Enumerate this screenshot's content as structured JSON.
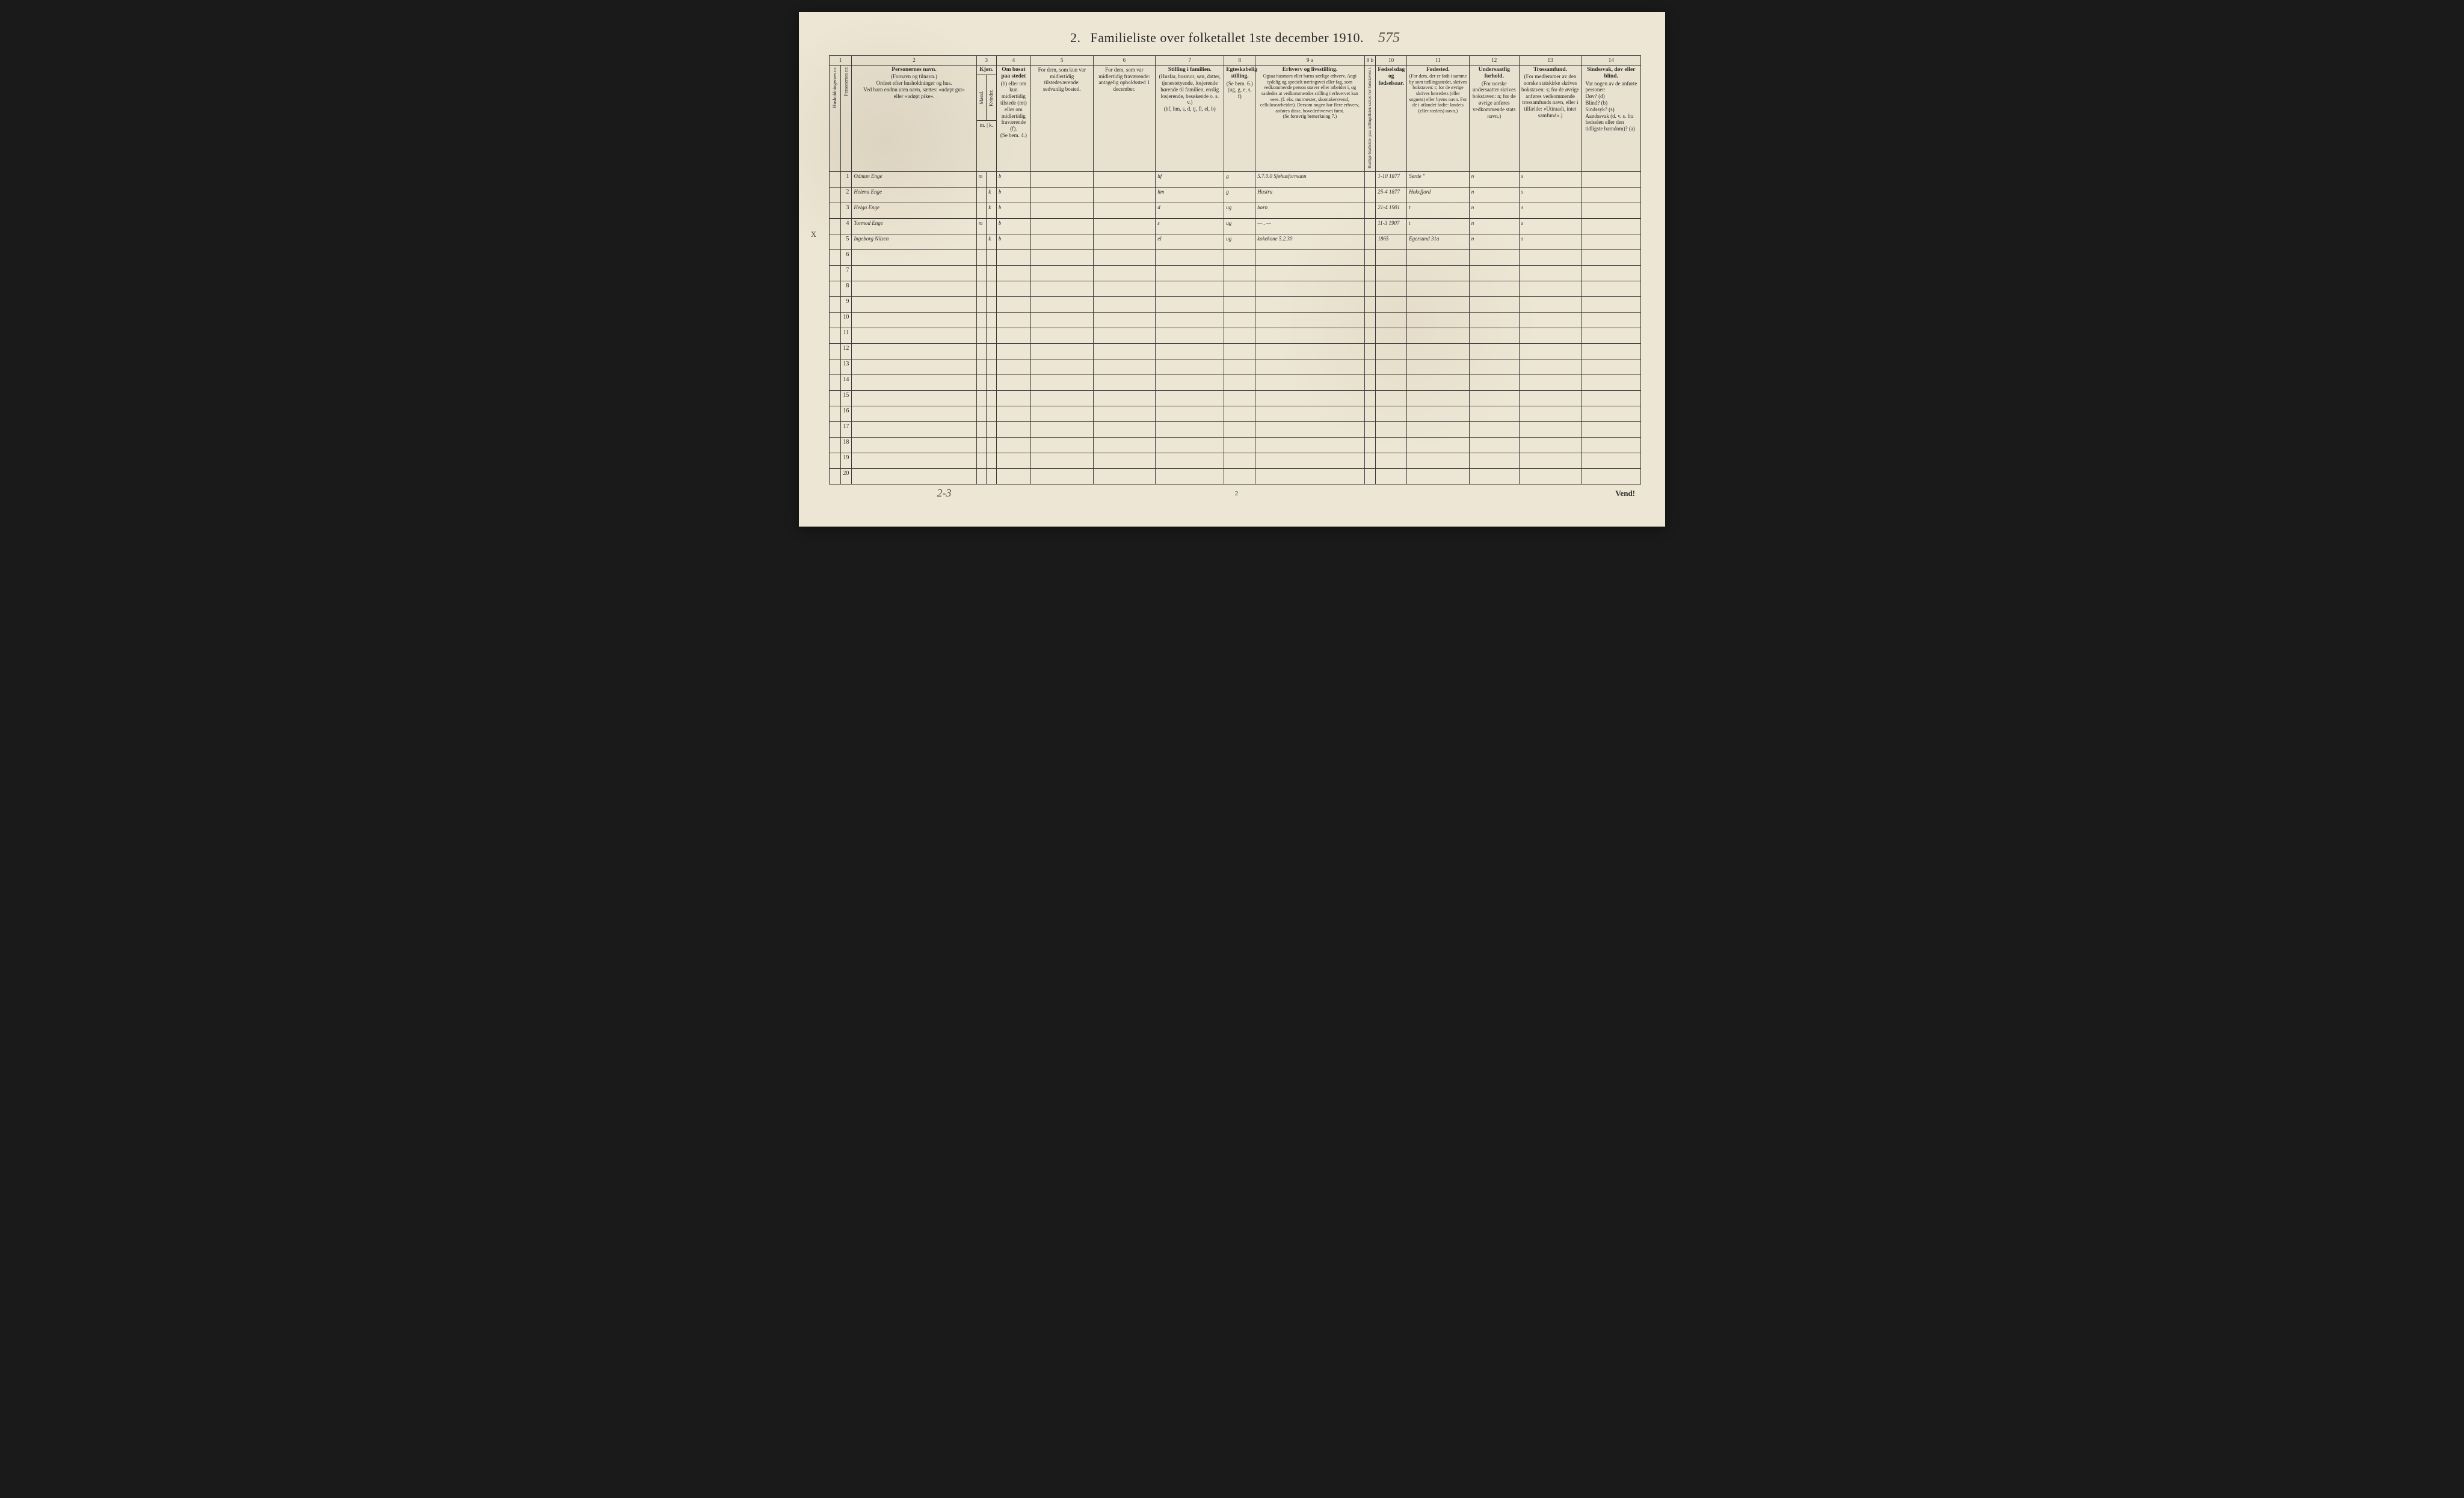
{
  "title_prefix": "2.",
  "title_text": "Familieliste over folketallet 1ste december 1910.",
  "handwritten_header": "575",
  "margin_mark": "x",
  "hand_below_table": "2-3",
  "page_number": "2",
  "vend": "Vend!",
  "col_numbers": [
    "1",
    "2",
    "3",
    "4",
    "5",
    "6",
    "7",
    "8",
    "9 a",
    "9 b",
    "10",
    "11",
    "12",
    "13",
    "14"
  ],
  "headers": {
    "c1a": "Husholdningernes nr.",
    "c1b": "Personernes nr.",
    "c2_title": "Personernes navn.",
    "c2_body": "(Fornavn og tilnavn.)\nOrdnet efter husholdninger og hus.\nVed barn endnu uten navn, sættes: «udøpt gut»\neller «udøpt pike».",
    "c3_title": "Kjøn.",
    "c3a": "Mænd.",
    "c3b": "Kvinder.",
    "c3_foot": "m. | k.",
    "c4_title": "Om bosat paa stedet",
    "c4_body": "(b) eller om kun midlertidig tilstede (mt) eller om midlertidig fraværende (f).\n(Se bem. 4.)",
    "c5_title": "For dem, som kun var midlertidig tilstedeværende:",
    "c5_body": "sedvanlig bosted.",
    "c6_title": "For dem, som var midlertidig fraværende:",
    "c6_body": "antagelig opholdssted 1 december.",
    "c7_title": "Stilling i familien.",
    "c7_body": "(Husfar, husmor, søn, datter, tjenestetyende, losjerende hørende til familien, enslig losjerende, besøkende o. s. v.)\n(hf, hm, s, d, tj, fl, el, b)",
    "c8_title": "Egteskabelig stilling.",
    "c8_body": "(Se bem. 6.)\n(ug, g, e, s, f)",
    "c9a_title": "Erhverv og livsstilling.",
    "c9a_body": "Ogsaa husmors eller barns særlige erhverv. Angi tydelig og specielt næringsvei eller fag, som vedkommende person utøver eller arbeider i, og saaledes at vedkommendes stilling i erhvervet kan sees. (f. eks. murmester, skomakersvend, cellulosearbeider). Dersom nogen har flere erhverv, anføres disse, hovederhvervet først.\n(Se forøvrig bemerkning 7.)",
    "c9b": "Huslige biarbeide: paa tællingslisten sættes her bokstaven: i.",
    "c10_title": "Fødselsdag og fødselsaar.",
    "c11_title": "Fødested.",
    "c11_body": "(For dem, der er født i samme by som tællingsstedet, skrives bokstaven: t; for de øvrige skrives herredets (eller sognets) eller byens navn. For de i utlandet fødte: landets (eller stedets) navn.)",
    "c12_title": "Undersaatlig forhold.",
    "c12_body": "(For norske undersaatter skrives bokstaven: n; for de øvrige anføres vedkommende stats navn.)",
    "c13_title": "Trossamfund.",
    "c13_body": "(For medlemmer av den norske statskirke skrives bokstaven: s; for de øvrige anføres vedkommende trossamfunds navn, eller i tilfælde: «Uttraadt, intet samfund».)",
    "c14_title": "Sindssvak, døv eller blind.",
    "c14_body": "Var nogen av de anførte personer:\nDøv? (d)\nBlind? (b)\nSindssyk? (s)\nAandssvak (d. v. s. fra fødselen eller den tidligste barndom)? (a)"
  },
  "col_widths": {
    "c1a": "18px",
    "c1b": "18px",
    "c2": "200px",
    "c3a": "16px",
    "c3b": "16px",
    "c4": "55px",
    "c5": "100px",
    "c6": "100px",
    "c7": "110px",
    "c8": "50px",
    "c9a": "175px",
    "c9b": "18px",
    "c10": "50px",
    "c11": "100px",
    "c12": "80px",
    "c13": "100px",
    "c14": "95px"
  },
  "rows": [
    {
      "n": "1",
      "name": "Odmun Enge",
      "m": "m",
      "k": "",
      "res": "b",
      "c5": "",
      "c6": "",
      "fam": "hf",
      "eg": "g",
      "occ": "5.7.0.0 Sjøhusformann",
      "bb": "",
      "dob": "1-10 1877",
      "birthplace": "Sørde \"",
      "nat": "n",
      "rel": "s",
      "c14": ""
    },
    {
      "n": "2",
      "name": "Helena Enge",
      "m": "",
      "k": "k",
      "res": "b",
      "c5": "",
      "c6": "",
      "fam": "hm",
      "eg": "g",
      "occ": "Hustru",
      "bb": "",
      "dob": "25-4 1877",
      "birthplace": "Hokefjord",
      "nat": "n",
      "rel": "s",
      "c14": ""
    },
    {
      "n": "3",
      "name": "Helga Enge",
      "m": "",
      "k": "k",
      "res": "b",
      "c5": "",
      "c6": "",
      "fam": "d",
      "eg": "ug",
      "occ": "barn",
      "bb": "",
      "dob": "21-4 1901",
      "birthplace": "t",
      "nat": "n",
      "rel": "s",
      "c14": ""
    },
    {
      "n": "4",
      "name": "Tormod Enge",
      "m": "m",
      "k": "",
      "res": "b",
      "c5": "",
      "c6": "",
      "fam": "s",
      "eg": "ug",
      "occ": "— . —",
      "bb": "",
      "dob": "11-3 1907",
      "birthplace": "t",
      "nat": "n",
      "rel": "s",
      "c14": ""
    },
    {
      "n": "5",
      "name": "Ingeborg Nilsen",
      "m": "",
      "k": "k",
      "res": "b",
      "c5": "",
      "c6": "",
      "fam": "el",
      "eg": "ug",
      "occ": "kokekone 5.2.30",
      "bb": "",
      "dob": "1865",
      "birthplace": "Egersund 31a",
      "nat": "n",
      "rel": "s",
      "c14": ""
    },
    {
      "n": "6"
    },
    {
      "n": "7"
    },
    {
      "n": "8"
    },
    {
      "n": "9"
    },
    {
      "n": "10"
    },
    {
      "n": "11"
    },
    {
      "n": "12"
    },
    {
      "n": "13"
    },
    {
      "n": "14"
    },
    {
      "n": "15"
    },
    {
      "n": "16"
    },
    {
      "n": "17"
    },
    {
      "n": "18"
    },
    {
      "n": "19"
    },
    {
      "n": "20"
    }
  ]
}
